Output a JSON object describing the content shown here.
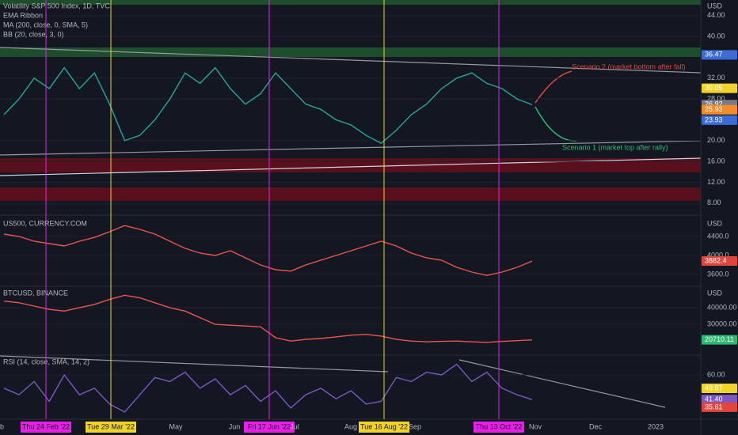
{
  "panes": [
    {
      "legend": [
        "Volatility S&P 500 Index, 1D, TVC",
        "EMA Ribbon",
        "MA (200, close, 0, SMA, 5)",
        "BB (20, close, 3, 0)"
      ],
      "currency": "USD",
      "color": "#26a69a",
      "ylim": [
        6.0,
        47.0
      ],
      "yticks": [
        {
          "value": 8,
          "label": "8.00"
        },
        {
          "value": 12,
          "label": "12.00"
        },
        {
          "value": 16,
          "label": "16.00"
        },
        {
          "value": 20,
          "label": "20.00"
        },
        {
          "value": 28,
          "label": "28.00"
        },
        {
          "value": 32,
          "label": "32.00"
        },
        {
          "value": 40,
          "label": "40.00"
        },
        {
          "value": 44,
          "label": "44.00"
        }
      ],
      "values": [
        25,
        28,
        32,
        30,
        34,
        30,
        33,
        27,
        20,
        21,
        24,
        28,
        33,
        31,
        34,
        30,
        27,
        29,
        33,
        30,
        27,
        26,
        24,
        23,
        21,
        19.5,
        22,
        25,
        27,
        30,
        32,
        33,
        31,
        30,
        28,
        26.9
      ],
      "badges": [
        {
          "value": 36.47,
          "label": "36.47",
          "color": "#3d6bd6"
        },
        {
          "value": 30.05,
          "label": "30.05",
          "color": "#f2d32a"
        },
        {
          "value": 26.92,
          "label": "26.92",
          "color": "#787b86"
        },
        {
          "value": 25.93,
          "label": "25.93",
          "color": "#f28c28"
        },
        {
          "value": 23.93,
          "label": "23.93",
          "color": "#3d6bd6"
        }
      ],
      "annotations": [
        {
          "text": "Scenario 2 (market bottom after fall)",
          "color": "#e0463c"
        },
        {
          "text": "Scenario 1 (market top after rally)",
          "color": "#2eb872"
        }
      ]
    },
    {
      "legend": [
        "US500, CURRENCY.COM"
      ],
      "currency": "USD",
      "color": "#ef5350",
      "ylim": [
        3350,
        4800
      ],
      "yticks": [
        {
          "value": 3600,
          "label": "3600.0"
        },
        {
          "value": 4000,
          "label": "4000.0"
        },
        {
          "value": 4400,
          "label": "4400.0"
        }
      ],
      "values": [
        4450,
        4400,
        4300,
        4250,
        4200,
        4300,
        4380,
        4500,
        4630,
        4550,
        4450,
        4300,
        4150,
        4050,
        4000,
        4100,
        3950,
        3800,
        3700,
        3670,
        3800,
        3900,
        4000,
        4100,
        4200,
        4300,
        4200,
        4050,
        3950,
        3900,
        3750,
        3650,
        3580,
        3650,
        3750,
        3882.4
      ],
      "badges": [
        {
          "value": 3882.4,
          "label": "3882.4",
          "color": "#e0463c"
        }
      ]
    },
    {
      "legend": [
        "BTCUSD, BINANCE"
      ],
      "currency": "USD",
      "color": "#ef5350",
      "ylim": [
        12000,
        52400
      ],
      "yticks": [
        {
          "value": 30000,
          "label": "30000.00"
        },
        {
          "value": 40000,
          "label": "40000.00"
        }
      ],
      "values": [
        44000,
        43000,
        41000,
        39000,
        38000,
        40000,
        42000,
        45000,
        47500,
        46000,
        43000,
        40000,
        38000,
        34000,
        30000,
        29500,
        29000,
        28500,
        22000,
        20000,
        21000,
        21500,
        22500,
        23500,
        24000,
        23000,
        21000,
        20000,
        19500,
        19800,
        20000,
        19500,
        19200,
        19800,
        20200,
        20710.11
      ],
      "badges": [
        {
          "value": 20710.11,
          "label": "20710.11",
          "color": "#2eb872"
        }
      ]
    },
    {
      "legend": [
        "RSI (14, close, SMA, 14, 2)"
      ],
      "color": "#7e57c2",
      "ylim": [
        26.6,
        74.3
      ],
      "yticks": [
        {
          "value": 60,
          "label": "60.00"
        }
      ],
      "values": [
        50,
        45,
        55,
        40,
        60,
        45,
        50,
        38,
        32,
        45,
        58,
        55,
        62,
        50,
        57,
        45,
        52,
        40,
        48,
        35,
        45,
        50,
        42,
        48,
        38,
        40,
        58,
        55,
        62,
        60,
        68,
        55,
        62,
        50,
        45,
        41.4
      ],
      "badges": [
        {
          "value": 49.87,
          "label": "49.87",
          "color": "#f2d32a"
        },
        {
          "value": 41.4,
          "label": "41.40",
          "color": "#7e57c2"
        },
        {
          "value": 35.61,
          "label": "35.61",
          "color": "#e0463c"
        }
      ]
    }
  ],
  "time_labels": [
    "b",
    {
      "label": "Thu 24 Feb '22",
      "color": "#e91ee9"
    },
    {
      "label": "Tue 29 Mar '22",
      "color": "#f2d32a"
    },
    "May",
    "Jun",
    {
      "label": "Fri 17 Jun '22",
      "color": "#e91ee9"
    },
    "Jul",
    "Aug",
    {
      "label": "Tue 16 Aug '22",
      "color": "#f2d32a"
    },
    "Sep",
    {
      "label": "Thu 13 Oct '22",
      "color": "#e91ee9"
    },
    "Nov",
    "Dec",
    "2023"
  ]
}
